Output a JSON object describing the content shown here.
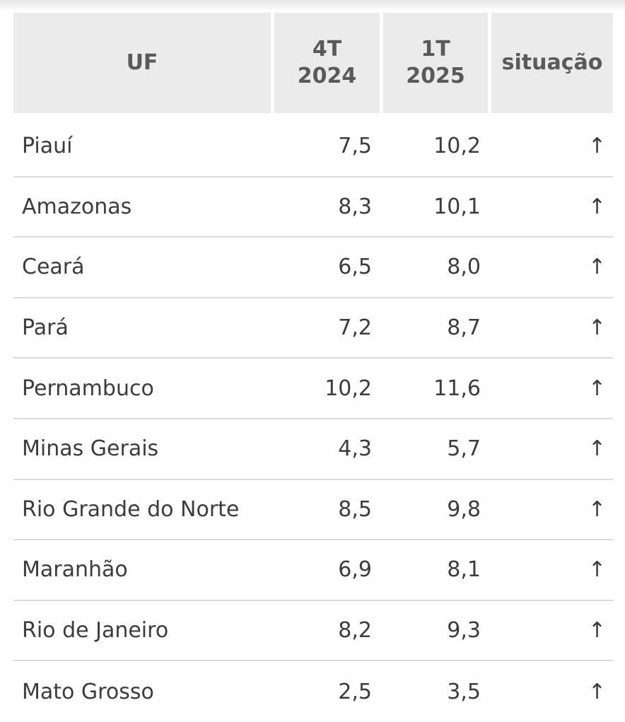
{
  "table": {
    "headers": {
      "uf": "UF",
      "q4": "4T\n2024",
      "q1": "1T\n2025",
      "status": "situação"
    },
    "rows": [
      {
        "uf": "Piauí",
        "q4_2024": "7,5",
        "q1_2025": "10,2",
        "status": "↑"
      },
      {
        "uf": "Amazonas",
        "q4_2024": "8,3",
        "q1_2025": "10,1",
        "status": "↑"
      },
      {
        "uf": "Ceará",
        "q4_2024": "6,5",
        "q1_2025": "8,0",
        "status": "↑"
      },
      {
        "uf": "Pará",
        "q4_2024": "7,2",
        "q1_2025": "8,7",
        "status": "↑"
      },
      {
        "uf": "Pernambuco",
        "q4_2024": "10,2",
        "q1_2025": "11,6",
        "status": "↑"
      },
      {
        "uf": "Minas Gerais",
        "q4_2024": "4,3",
        "q1_2025": "5,7",
        "status": "↑"
      },
      {
        "uf": "Rio Grande do Norte",
        "q4_2024": "8,5",
        "q1_2025": "9,8",
        "status": "↑"
      },
      {
        "uf": "Maranhão",
        "q4_2024": "6,9",
        "q1_2025": "8,1",
        "status": "↑"
      },
      {
        "uf": "Rio de Janeiro",
        "q4_2024": "8,2",
        "q1_2025": "9,3",
        "status": "↑"
      },
      {
        "uf": "Mato Grosso",
        "q4_2024": "2,5",
        "q1_2025": "3,5",
        "status": "↑"
      }
    ]
  }
}
